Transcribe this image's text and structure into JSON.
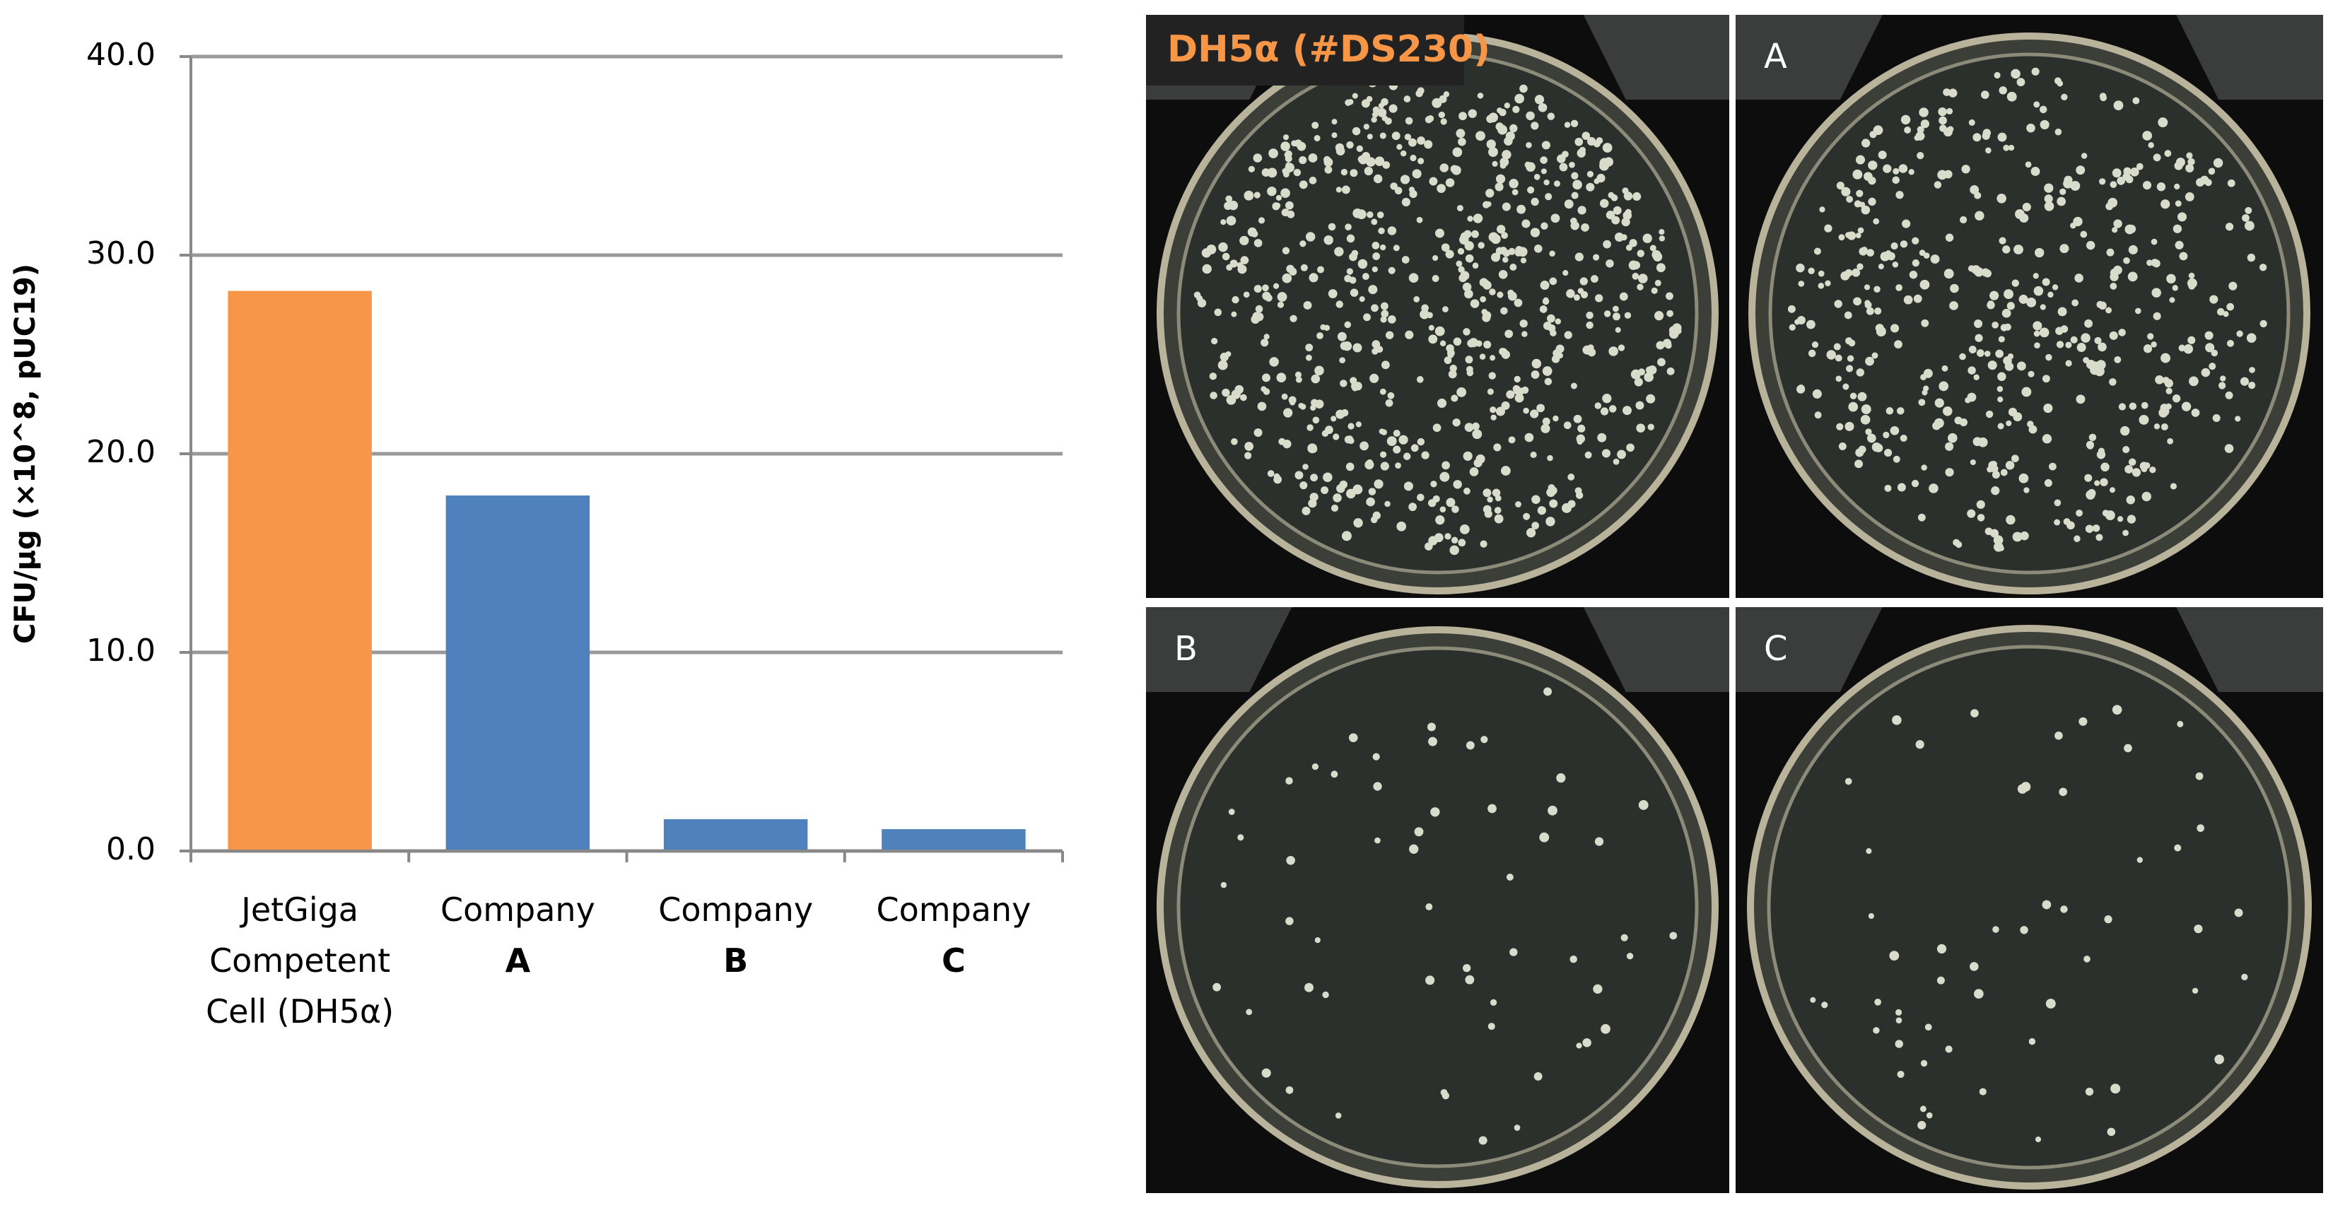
{
  "chart_data": {
    "type": "bar",
    "y_label": "CFU/µg (×10^8, pUC19)",
    "categories": [
      "JetGiga Competent Cell (DH5α)",
      "Company A",
      "Company B",
      "Company C"
    ],
    "values": [
      28.2,
      17.9,
      1.6,
      1.1
    ],
    "colors": [
      "#f79646",
      "#4f81bd",
      "#4f81bd",
      "#4f81bd"
    ],
    "ylim": [
      0,
      40
    ],
    "yticks": [
      {
        "value": 0,
        "label": "0.0"
      },
      {
        "value": 10,
        "label": "10.0"
      },
      {
        "value": 20,
        "label": "20.0"
      },
      {
        "value": 30,
        "label": "30.0"
      },
      {
        "value": 40,
        "label": "40.0"
      }
    ],
    "grid": true
  },
  "panel_labels": [
    "DH5α (#DS230)",
    "A",
    "B",
    "C"
  ]
}
